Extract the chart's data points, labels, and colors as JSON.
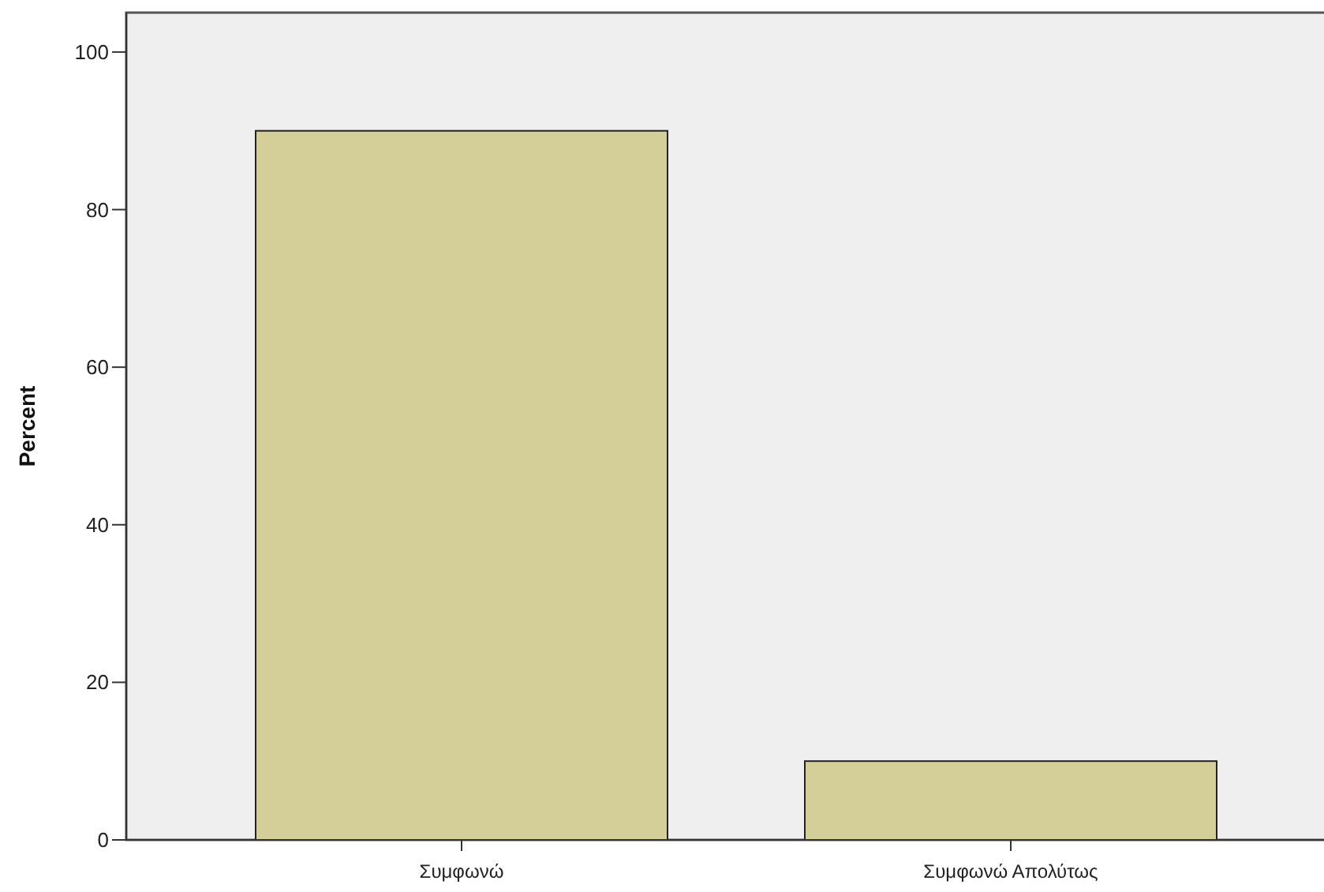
{
  "chart_data": {
    "type": "bar",
    "ylabel": "Percent",
    "categories": [
      "Συμφωνώ",
      "Συμφωνώ Απολύτως"
    ],
    "values": [
      90,
      10
    ],
    "color": "#d4cf99",
    "ylim": [
      0,
      105
    ],
    "yticks": [
      0,
      20,
      40,
      60,
      80,
      100
    ],
    "grid": false
  }
}
